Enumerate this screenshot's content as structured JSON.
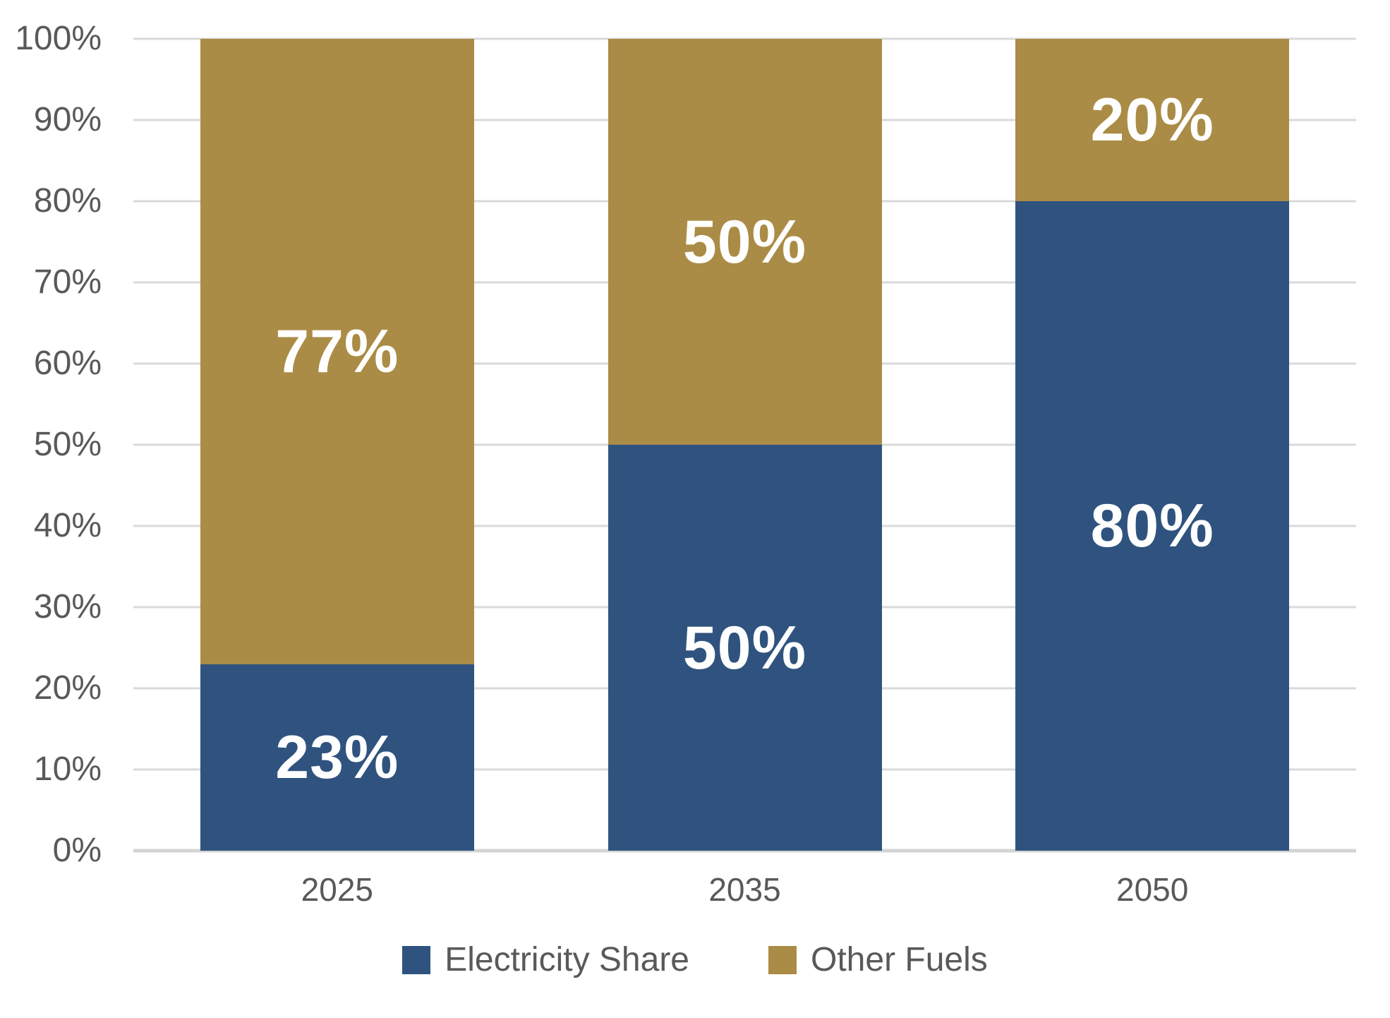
{
  "figure": {
    "background": "#FFFFFF",
    "title": ""
  },
  "colors": {
    "electricity_blue": "#2F537E",
    "other_fuels_gold": "#AA8C46",
    "axis_text": "#595959",
    "gridline": "#DADADA",
    "baseline": "#D4D4D4",
    "data_label": "#FFFFFF"
  },
  "chart_data": {
    "type": "bar",
    "stacked": true,
    "title": "",
    "xlabel": "",
    "ylabel": "",
    "categories": [
      "2025",
      "2035",
      "2050"
    ],
    "series": [
      {
        "name": "Electricity Share",
        "color": "#2F537E",
        "values": [
          23,
          50,
          80
        ],
        "data_labels": [
          "23%",
          "50%",
          "80%"
        ]
      },
      {
        "name": "Other Fuels",
        "color": "#AA8C46",
        "values": [
          77,
          50,
          20
        ],
        "data_labels": [
          "77%",
          "50%",
          "20%"
        ]
      }
    ],
    "y_axis": {
      "min": 0,
      "max": 100,
      "tick_step": 10,
      "tick_labels": [
        "0%",
        "10%",
        "20%",
        "30%",
        "40%",
        "50%",
        "60%",
        "70%",
        "80%",
        "90%",
        "100%"
      ]
    },
    "x_axis": {
      "tick_labels": [
        "2025",
        "2035",
        "2050"
      ]
    },
    "grid": "horizontal",
    "legend": {
      "position": "bottom",
      "entries": [
        "Electricity Share",
        "Other Fuels"
      ]
    }
  }
}
